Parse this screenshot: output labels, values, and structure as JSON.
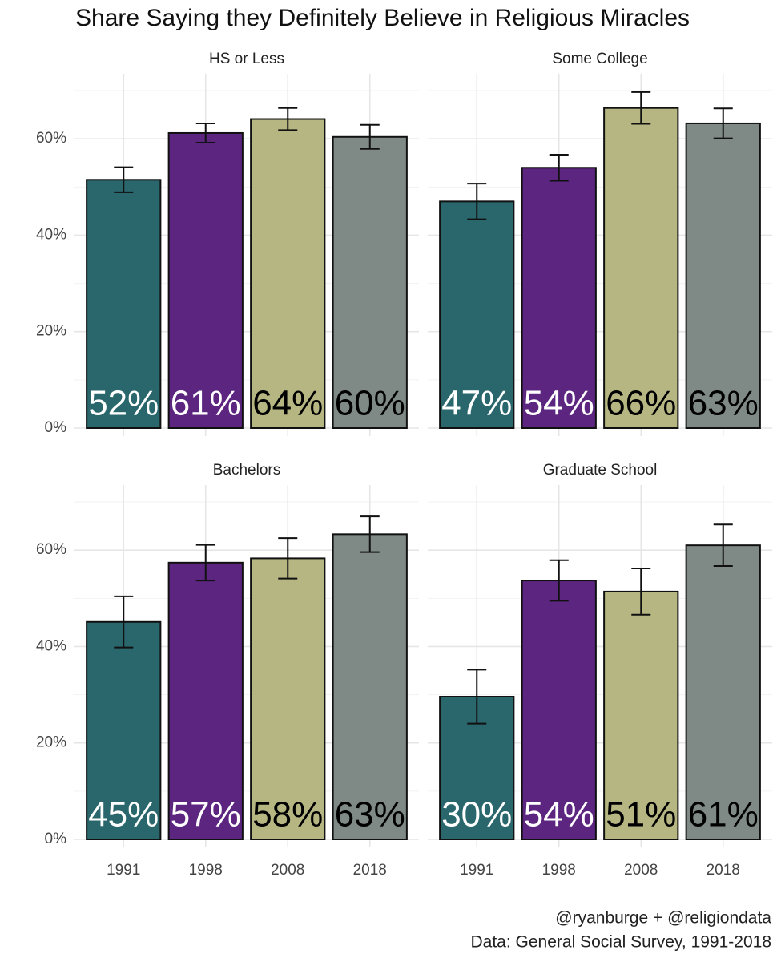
{
  "title": "Share Saying they Definitely Believe in Religious Miracles",
  "caption": [
    "@ryanburge + @religiondata",
    "Data: General Social Survey, 1991-2018"
  ],
  "chart_data": [
    {
      "type": "bar",
      "title": "HS or Less",
      "categories": [
        "1991",
        "1998",
        "2008",
        "2018"
      ],
      "values": [
        51.5,
        61.2,
        64.1,
        60.4
      ],
      "errors": [
        2.6,
        2.0,
        2.3,
        2.5
      ],
      "value_labels": [
        "52%",
        "61%",
        "64%",
        "60%"
      ],
      "colors": [
        "#2a676c",
        "#5c2580",
        "#b6b682",
        "#7f8a87"
      ],
      "value_label_colors": [
        "#ffffff",
        "#ffffff",
        "#000000",
        "#000000"
      ],
      "ylim": [
        0,
        73.5
      ],
      "yticks": [
        {
          "value": 0,
          "label": "0%"
        },
        {
          "value": 20,
          "label": "20%"
        },
        {
          "value": 40,
          "label": "40%"
        },
        {
          "value": 60,
          "label": "60%"
        }
      ],
      "minor_yticks": [
        10,
        30,
        50,
        70
      ],
      "grid": true
    },
    {
      "type": "bar",
      "title": "Some College",
      "categories": [
        "1991",
        "1998",
        "2008",
        "2018"
      ],
      "values": [
        47.0,
        54.0,
        66.4,
        63.2
      ],
      "errors": [
        3.7,
        2.7,
        3.3,
        3.1
      ],
      "value_labels": [
        "47%",
        "54%",
        "66%",
        "63%"
      ],
      "colors": [
        "#2a676c",
        "#5c2580",
        "#b6b682",
        "#7f8a87"
      ],
      "value_label_colors": [
        "#ffffff",
        "#ffffff",
        "#000000",
        "#000000"
      ],
      "ylim": [
        0,
        73.5
      ],
      "yticks": [
        {
          "value": 0,
          "label": "0%"
        },
        {
          "value": 20,
          "label": "20%"
        },
        {
          "value": 40,
          "label": "40%"
        },
        {
          "value": 60,
          "label": "60%"
        }
      ],
      "minor_yticks": [
        10,
        30,
        50,
        70
      ],
      "grid": true
    },
    {
      "type": "bar",
      "title": "Bachelors",
      "categories": [
        "1991",
        "1998",
        "2008",
        "2018"
      ],
      "values": [
        45.1,
        57.4,
        58.3,
        63.3
      ],
      "errors": [
        5.3,
        3.7,
        4.2,
        3.7
      ],
      "value_labels": [
        "45%",
        "57%",
        "58%",
        "63%"
      ],
      "colors": [
        "#2a676c",
        "#5c2580",
        "#b6b682",
        "#7f8a87"
      ],
      "value_label_colors": [
        "#ffffff",
        "#ffffff",
        "#000000",
        "#000000"
      ],
      "ylim": [
        0,
        73.5
      ],
      "yticks": [
        {
          "value": 0,
          "label": "0%"
        },
        {
          "value": 20,
          "label": "20%"
        },
        {
          "value": 40,
          "label": "40%"
        },
        {
          "value": 60,
          "label": "60%"
        }
      ],
      "minor_yticks": [
        10,
        30,
        50,
        70
      ],
      "grid": true
    },
    {
      "type": "bar",
      "title": "Graduate School",
      "categories": [
        "1991",
        "1998",
        "2008",
        "2018"
      ],
      "values": [
        29.6,
        53.7,
        51.4,
        61.0
      ],
      "errors": [
        5.6,
        4.2,
        4.8,
        4.3
      ],
      "value_labels": [
        "30%",
        "54%",
        "51%",
        "61%"
      ],
      "colors": [
        "#2a676c",
        "#5c2580",
        "#b6b682",
        "#7f8a87"
      ],
      "value_label_colors": [
        "#ffffff",
        "#ffffff",
        "#000000",
        "#000000"
      ],
      "ylim": [
        0,
        73.5
      ],
      "yticks": [
        {
          "value": 0,
          "label": "0%"
        },
        {
          "value": 20,
          "label": "20%"
        },
        {
          "value": 40,
          "label": "40%"
        },
        {
          "value": 60,
          "label": "60%"
        }
      ],
      "minor_yticks": [
        10,
        30,
        50,
        70
      ],
      "grid": true
    }
  ]
}
